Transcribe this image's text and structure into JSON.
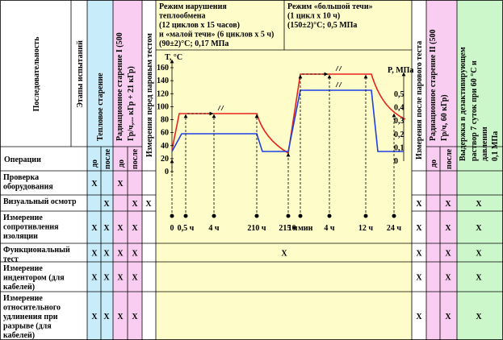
{
  "header": {
    "sequence": "Последовательность",
    "stages": "Этапы испытаний",
    "thermal_aging": "Тепловое старение",
    "radiation_aging_1": [
      "Радиационное старение I (500",
      "Гр/ч,... кГр + 21 кГр)"
    ],
    "before_steam": "Измерения перед паровым тестом",
    "after_steam": "Измерения после парового теста",
    "radiation_aging_2": [
      "Радиационное старение II (500",
      "Гр/ч, 60 кГр)"
    ],
    "decontamination": [
      "Выдержка в дезактивирующем",
      "раствор 7 суток при 60 °С и",
      "давлении",
      "0,1 МПа"
    ],
    "operations": "Операции",
    "before": "до",
    "after": "после"
  },
  "diagram": {
    "mode_1": [
      "Режим нарушения",
      "теплообмена",
      "(12 циклов х 15 часов)",
      "и «малой течи» (6 циклов х 5 ч)",
      "(90±2)°С; 0,17 МПа"
    ],
    "mode_2": [
      "Режим «большой течи»",
      "(1 цикл х 10 ч)",
      "(150±2)°С; 0,5 МПа"
    ],
    "temp_axis": "T, °C",
    "pressure_axis": "P, МПа",
    "temp_ticks": [
      160,
      140,
      120,
      100,
      80,
      60,
      40,
      20,
      0
    ],
    "pressure_ticks": [
      "0,5",
      "0,4",
      "0,3",
      "0,2",
      "0,1",
      "0"
    ],
    "time_labels": [
      "0",
      "0,5 ч",
      "4 ч",
      "210 ч",
      "215 ч",
      "10 мин",
      "4 ч",
      "12 ч",
      "24 ч"
    ]
  },
  "rows": [
    {
      "label": [
        "Проверка",
        "оборудования"
      ],
      "cells": [
        "X",
        null,
        "X",
        null,
        null,
        null,
        null,
        null,
        null,
        null
      ]
    },
    {
      "label": [
        "Визуальный осмотр"
      ],
      "cells": [
        null,
        "X",
        null,
        "X",
        "X",
        null,
        "X",
        null,
        "X",
        "X"
      ]
    },
    {
      "label": [
        "Измерение",
        "сопротивления",
        "изоляции"
      ],
      "cells": [
        "X",
        "X",
        "X",
        "X",
        null,
        null,
        "X",
        null,
        "X",
        "X"
      ]
    },
    {
      "label": [
        "Функциональный",
        "тест"
      ],
      "cells": [
        "X",
        "X",
        "X",
        "X",
        null,
        "X",
        "X",
        null,
        "X",
        "X"
      ]
    },
    {
      "label": [
        "Измерение",
        "индентором (для",
        "кабелей)"
      ],
      "cells": [
        "X",
        "X",
        "X",
        "X",
        null,
        null,
        "X",
        null,
        "X",
        "X"
      ]
    },
    {
      "label": [
        "Измерение",
        "относительного",
        "удлинения при",
        "разрыве  (для",
        "кабелей)"
      ],
      "cells": [
        "X",
        "X",
        "X",
        "X",
        null,
        null,
        "X",
        null,
        "X",
        "X"
      ]
    }
  ]
}
